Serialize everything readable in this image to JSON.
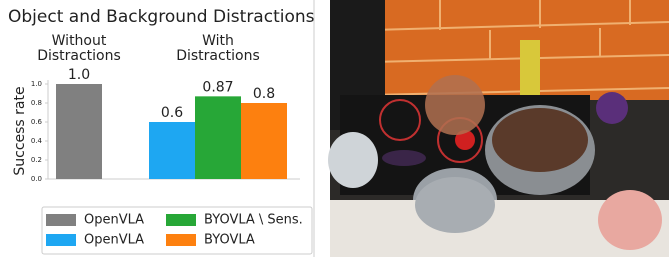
{
  "chart_data": {
    "type": "bar",
    "title": "Object and Background Distractions",
    "y_label": "Success rate",
    "categories": [
      "Without Distractions",
      "With Distractions"
    ],
    "series": [
      {
        "name": "OpenVLA",
        "color": "#808080",
        "values": [
          1.0,
          null
        ],
        "value_labels": [
          "1.0",
          null
        ]
      },
      {
        "name": "OpenVLA",
        "color": "#1ea7f2",
        "values": [
          null,
          0.6
        ]
      },
      {
        "name": "BYOVLA \\ Sens.",
        "color": "#27a737",
        "values": [
          null,
          0.87
        ]
      },
      {
        "name": "BYOVLA",
        "color": "#fd800f",
        "values": [
          null,
          0.8
        ]
      }
    ],
    "ylim": [
      0,
      1
    ],
    "yticks": [
      {
        "value": 0,
        "label": "0.0"
      },
      0.2,
      0.4,
      0.6,
      0.8,
      {
        "value": 1,
        "label": "1.0"
      }
    ],
    "grid": false
  }
}
